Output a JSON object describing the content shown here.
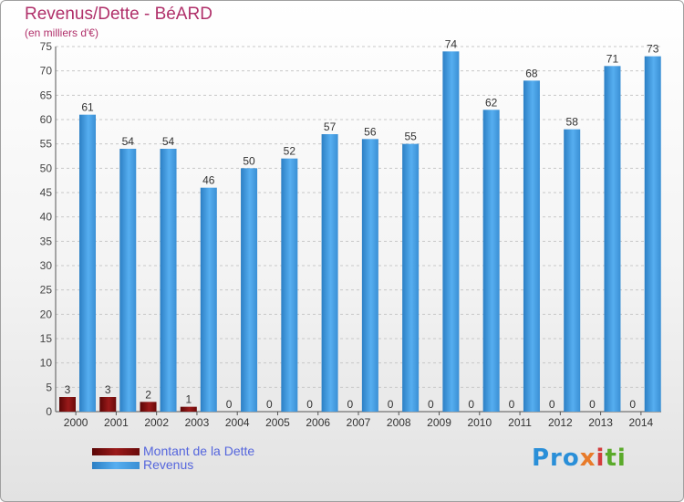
{
  "chart_data": {
    "type": "bar",
    "title": "Revenus/Dette - BéARD",
    "subtitle": "(en milliers d'€)",
    "categories": [
      "2000",
      "2001",
      "2002",
      "2003",
      "2004",
      "2005",
      "2006",
      "2007",
      "2008",
      "2009",
      "2010",
      "2011",
      "2012",
      "2013",
      "2014"
    ],
    "series": [
      {
        "name": "Montant de la Dette",
        "color": "#7a0d0d",
        "values": [
          3,
          3,
          2,
          1,
          0,
          0,
          0,
          0,
          0,
          0,
          0,
          0,
          0,
          0,
          0
        ]
      },
      {
        "name": "Revenus",
        "color": "#3a92d8",
        "values": [
          61,
          54,
          54,
          46,
          50,
          52,
          57,
          56,
          55,
          74,
          62,
          68,
          58,
          71,
          73
        ]
      }
    ],
    "ylim": [
      0,
      75
    ],
    "yticks": [
      0,
      5,
      10,
      15,
      20,
      25,
      30,
      35,
      40,
      45,
      50,
      55,
      60,
      65,
      70,
      75
    ],
    "grid": true,
    "legend_position": "bottom-left"
  },
  "logo": {
    "parts": [
      "Pro",
      "x",
      "i",
      "ti"
    ]
  }
}
